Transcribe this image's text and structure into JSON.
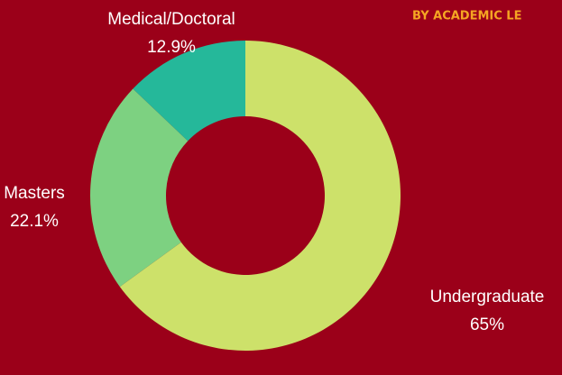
{
  "chart_data": {
    "type": "donut",
    "title": "BY ACADEMIC LE",
    "categories": [
      "Undergraduate",
      "Masters",
      "Medical/Doctoral"
    ],
    "values": [
      65,
      22.1,
      12.9
    ],
    "value_labels": [
      "65%",
      "22.1%",
      "12.9%"
    ],
    "colors": [
      "#cde16a",
      "#7dd181",
      "#25b89a"
    ]
  }
}
